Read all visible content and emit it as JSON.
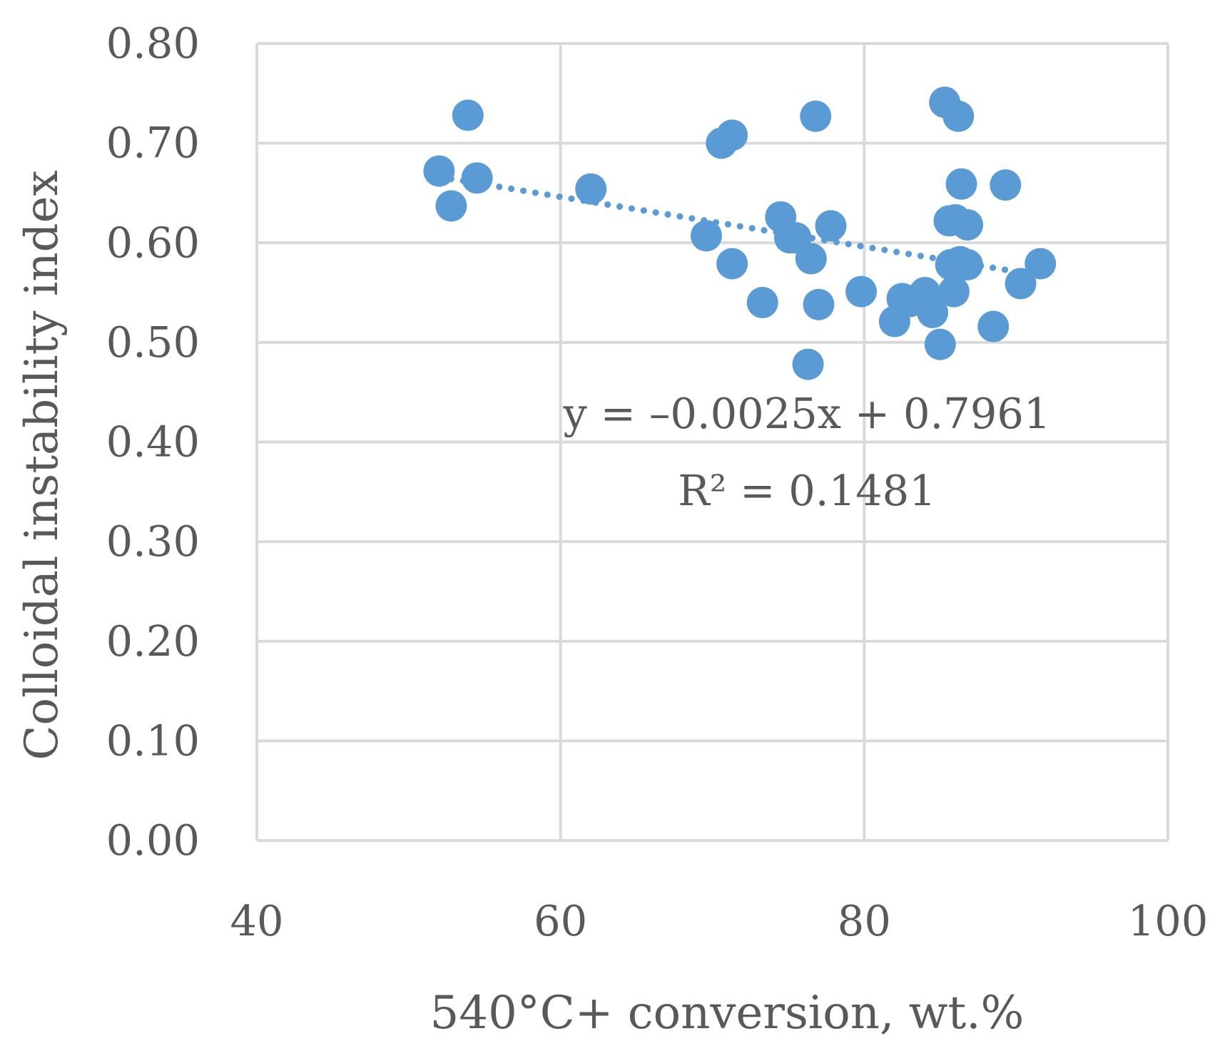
{
  "chart_data": {
    "type": "scatter",
    "title": "",
    "xlabel": "540°C+ conversion, wt.%",
    "ylabel": "Colloidal instability index",
    "xlim": [
      40,
      100
    ],
    "ylim": [
      0.0,
      0.8
    ],
    "x_ticks": [
      40,
      60,
      80,
      100
    ],
    "x_tick_labels": [
      "40",
      "60",
      "80",
      "100"
    ],
    "y_ticks": [
      0.0,
      0.1,
      0.2,
      0.3,
      0.4,
      0.5,
      0.6,
      0.7,
      0.8
    ],
    "y_tick_labels": [
      "0.00",
      "0.10",
      "0.20",
      "0.30",
      "0.40",
      "0.50",
      "0.60",
      "0.70",
      "0.80"
    ],
    "grid": true,
    "legend": false,
    "marker_color": "#5B9BD5",
    "grid_color": "#D9D9D9",
    "text_color": "#595959",
    "series": [
      {
        "name": "Data",
        "points": [
          {
            "x": 52.0,
            "y": 0.672
          },
          {
            "x": 53.9,
            "y": 0.728
          },
          {
            "x": 52.8,
            "y": 0.637
          },
          {
            "x": 54.5,
            "y": 0.665
          },
          {
            "x": 62.0,
            "y": 0.654
          },
          {
            "x": 69.6,
            "y": 0.607
          },
          {
            "x": 70.6,
            "y": 0.7
          },
          {
            "x": 71.3,
            "y": 0.708
          },
          {
            "x": 71.3,
            "y": 0.579
          },
          {
            "x": 73.3,
            "y": 0.54
          },
          {
            "x": 74.5,
            "y": 0.626
          },
          {
            "x": 75.1,
            "y": 0.605
          },
          {
            "x": 75.5,
            "y": 0.605
          },
          {
            "x": 76.3,
            "y": 0.478
          },
          {
            "x": 76.5,
            "y": 0.584
          },
          {
            "x": 76.8,
            "y": 0.727
          },
          {
            "x": 77.0,
            "y": 0.538
          },
          {
            "x": 77.8,
            "y": 0.617
          },
          {
            "x": 79.8,
            "y": 0.551
          },
          {
            "x": 82.0,
            "y": 0.521
          },
          {
            "x": 82.5,
            "y": 0.544
          },
          {
            "x": 83.0,
            "y": 0.541
          },
          {
            "x": 83.5,
            "y": 0.543
          },
          {
            "x": 84.0,
            "y": 0.55
          },
          {
            "x": 84.5,
            "y": 0.53
          },
          {
            "x": 85.0,
            "y": 0.498
          },
          {
            "x": 85.3,
            "y": 0.741
          },
          {
            "x": 85.6,
            "y": 0.622
          },
          {
            "x": 85.7,
            "y": 0.578
          },
          {
            "x": 85.9,
            "y": 0.551
          },
          {
            "x": 86.0,
            "y": 0.623
          },
          {
            "x": 86.2,
            "y": 0.727
          },
          {
            "x": 86.3,
            "y": 0.581
          },
          {
            "x": 86.4,
            "y": 0.659
          },
          {
            "x": 86.8,
            "y": 0.618
          },
          {
            "x": 86.8,
            "y": 0.578
          },
          {
            "x": 88.5,
            "y": 0.516
          },
          {
            "x": 89.3,
            "y": 0.658
          },
          {
            "x": 90.3,
            "y": 0.559
          },
          {
            "x": 91.6,
            "y": 0.579
          }
        ]
      }
    ],
    "trendline": {
      "type": "linear",
      "style": "dotted",
      "slope": -0.0025,
      "intercept": 0.7961,
      "x_range": [
        52.0,
        91.6
      ],
      "equation_label": "y = –0.0025x + 0.7961",
      "r2_label": "R² = 0.1481"
    }
  }
}
